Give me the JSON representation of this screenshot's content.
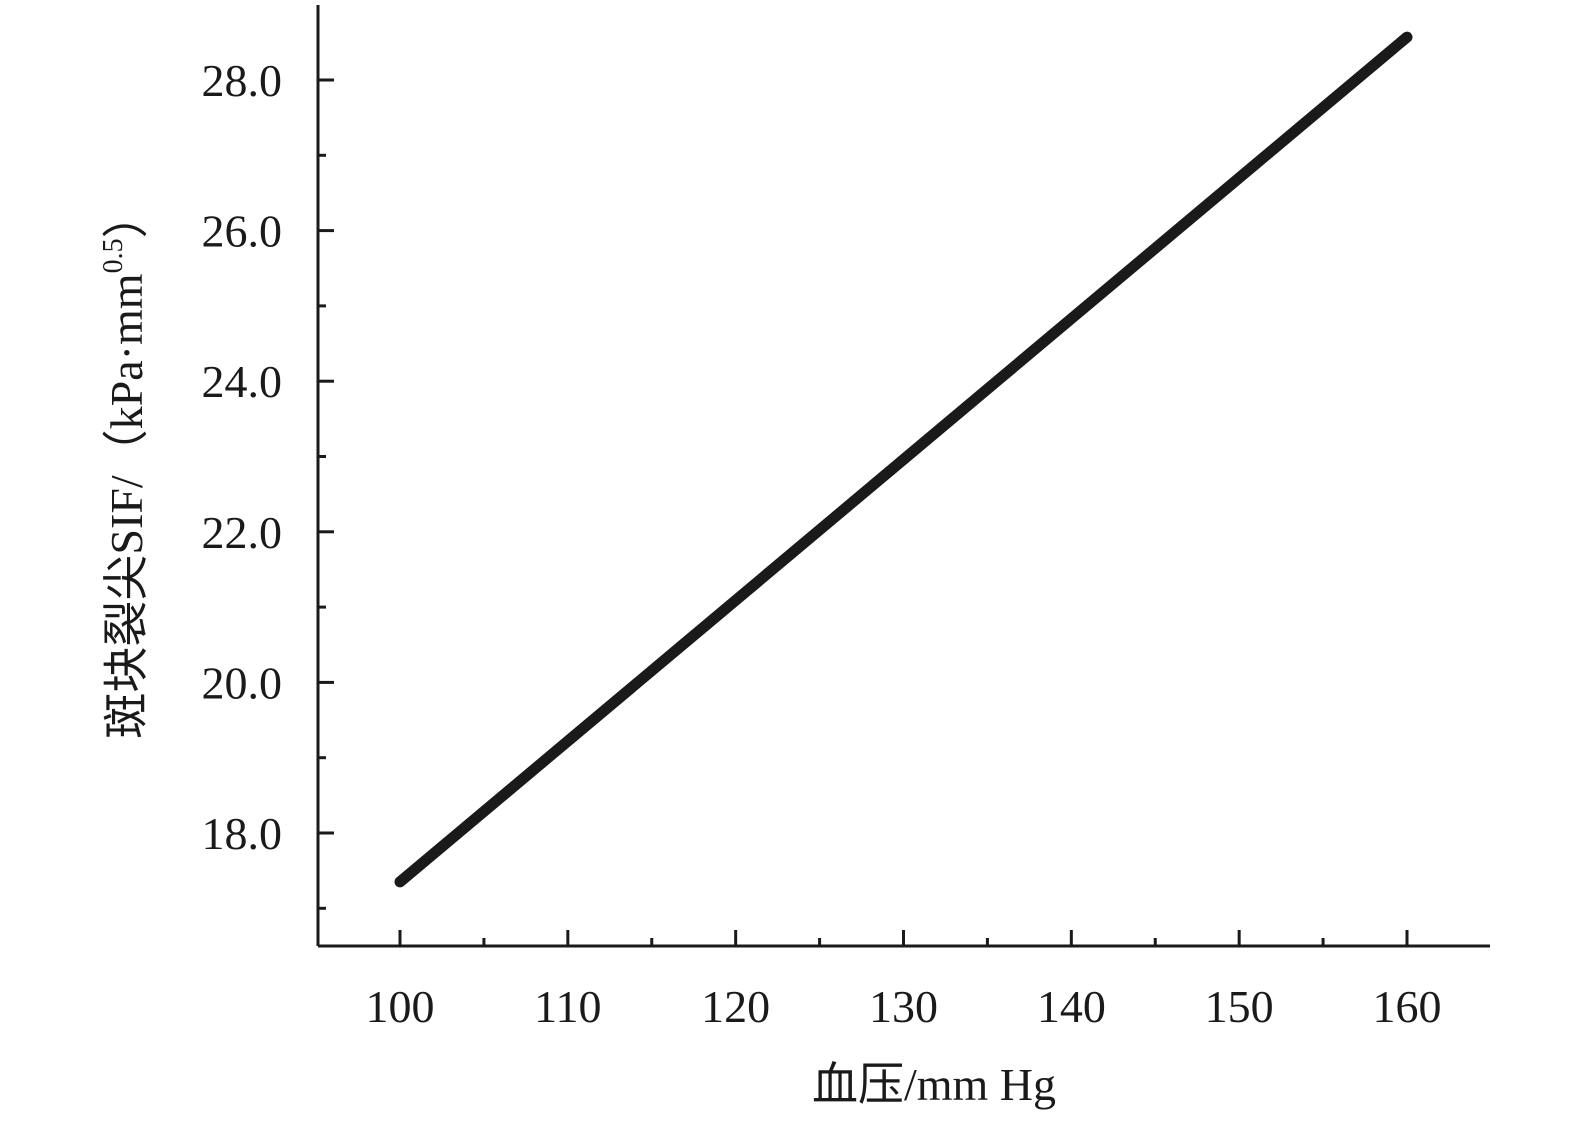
{
  "chart_data": {
    "type": "line",
    "xlabel": "血压/mm Hg",
    "ylabel": "斑块裂尖SIF/（kPa·mm",
    "ylabel_sup": "0.5",
    "ylabel_close": "）",
    "xlim": [
      95,
      165
    ],
    "ylim": [
      16.5,
      29.0
    ],
    "x_ticks": [
      100,
      110,
      120,
      130,
      140,
      150,
      160
    ],
    "x_tick_labels": [
      "100",
      "110",
      "120",
      "130",
      "140",
      "150",
      "160"
    ],
    "x_minor_ticks": [
      105,
      115,
      125,
      135,
      145,
      155
    ],
    "y_ticks": [
      18,
      20,
      22,
      24,
      26,
      28
    ],
    "y_tick_labels": [
      "18.0",
      "20.0",
      "22.0",
      "24.0",
      "26.0",
      "28.0"
    ],
    "y_minor_ticks": [
      17,
      19,
      21,
      23,
      25,
      27
    ],
    "grid": false,
    "series": [
      {
        "x": [
          100,
          110,
          120,
          130,
          140,
          150,
          160
        ],
        "y": [
          17.35,
          19.22,
          21.09,
          22.96,
          24.83,
          26.7,
          28.57
        ],
        "color": "#1a1a1a"
      }
    ]
  }
}
